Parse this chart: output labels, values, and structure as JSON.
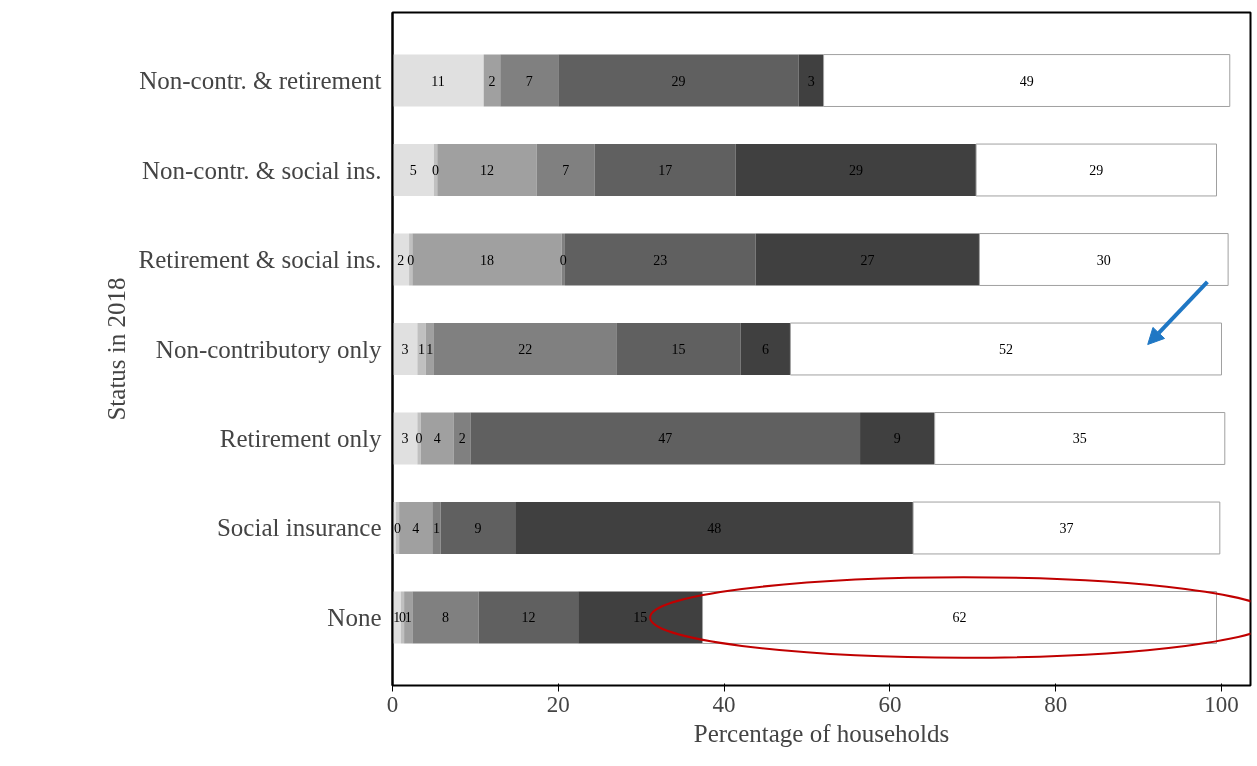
{
  "chart_data": {
    "type": "bar",
    "orientation": "horizontal",
    "stacked": true,
    "xlabel": "Percentage of households",
    "ylabel": "Status in 2018",
    "categories": [
      "Non-contr. & retirement",
      "Non-contr. & social ins.",
      "Retirement & social ins.",
      "Non-contributory only",
      "Retirement only",
      "Social insurance",
      "None"
    ],
    "series": [
      {
        "color": "#e0e0e0",
        "values": [
          11,
          5,
          2,
          3,
          3,
          0.4,
          1
        ],
        "value_labels": [
          "11",
          "5",
          "2",
          "3",
          "3",
          null,
          "1"
        ]
      },
      {
        "color": "#c0c0c0",
        "values": [
          0,
          0.4,
          0.4,
          1,
          0.4,
          0.4,
          0.4
        ],
        "value_labels": [
          null,
          "0",
          "0",
          "1",
          "0",
          "0",
          "0"
        ]
      },
      {
        "color": "#a0a0a0",
        "values": [
          2,
          12,
          18,
          1,
          4,
          4,
          1
        ],
        "value_labels": [
          "2",
          "12",
          "18",
          "1",
          "4",
          "4",
          "1"
        ]
      },
      {
        "color": "#808080",
        "values": [
          7,
          7,
          0.4,
          22,
          2,
          1,
          8
        ],
        "value_labels": [
          "7",
          "7",
          "0",
          "22",
          "2",
          "1",
          "8"
        ]
      },
      {
        "color": "#606060",
        "values": [
          29,
          17,
          23,
          15,
          47,
          9,
          12
        ],
        "value_labels": [
          "29",
          "17",
          "23",
          "15",
          "47",
          "9",
          "12"
        ]
      },
      {
        "color": "#404040",
        "values": [
          3,
          29,
          27,
          6,
          9,
          48,
          15
        ],
        "value_labels": [
          "3",
          "29",
          "27",
          "6",
          "9",
          "48",
          "15"
        ]
      },
      {
        "color": "#ffffff",
        "values": [
          49,
          29,
          30,
          52,
          35,
          37,
          62
        ],
        "value_labels": [
          "49",
          "29",
          "30",
          "52",
          "35",
          "37",
          "62"
        ]
      }
    ],
    "xlim": [
      0,
      103.5
    ],
    "xticks": [
      0,
      20,
      40,
      60,
      80,
      100
    ],
    "grid": false
  }
}
